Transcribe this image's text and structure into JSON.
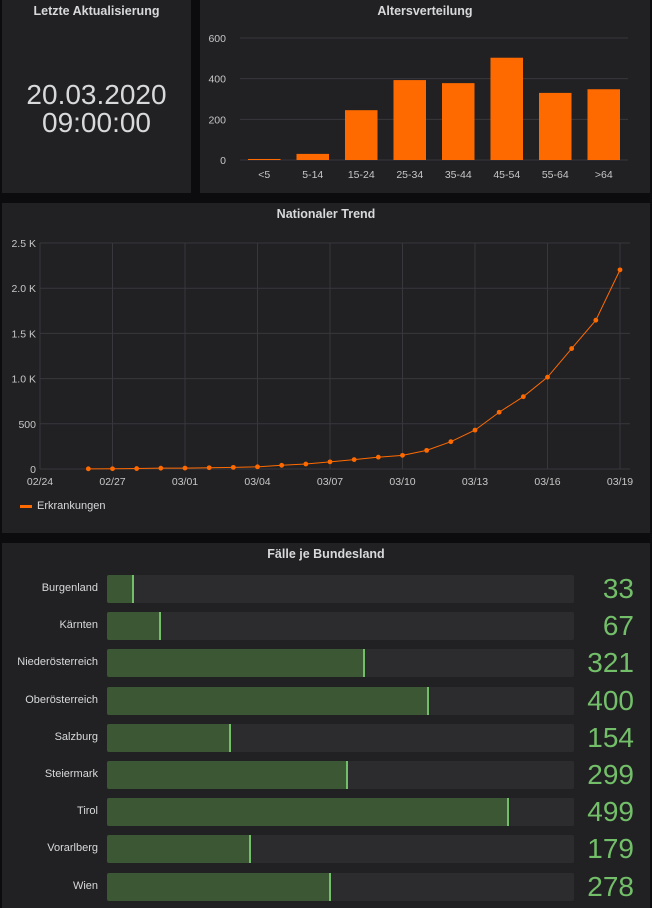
{
  "last_update": {
    "title": "Letzte Aktualisierung",
    "date": "20.03.2020",
    "time": "09:00:00"
  },
  "colors": {
    "accent": "#ff6a00",
    "gauge_fill": "#3b5733",
    "gauge_line": "#73bf69",
    "panel": "#212124",
    "background": "#0c0c0e"
  },
  "chart_data": [
    {
      "id": "age",
      "type": "bar",
      "title": "Altersverteilung",
      "categories": [
        "<5",
        "5-14",
        "15-24",
        "25-34",
        "35-44",
        "45-54",
        "55-64",
        ">64"
      ],
      "values": [
        5,
        30,
        245,
        393,
        378,
        503,
        330,
        348
      ],
      "ylim": [
        0,
        600
      ],
      "yticks": [
        0,
        200,
        400,
        600
      ],
      "grid": true
    },
    {
      "id": "trend",
      "type": "line",
      "title": "Nationaler Trend",
      "x": [
        "02/26",
        "02/27",
        "02/28",
        "02/29",
        "03/01",
        "03/02",
        "03/03",
        "03/04",
        "03/05",
        "03/06",
        "03/07",
        "03/08",
        "03/09",
        "03/10",
        "03/11",
        "03/12",
        "03/13",
        "03/14",
        "03/15",
        "03/16",
        "03/17",
        "03/18",
        "03/19"
      ],
      "series": [
        {
          "name": "Erkrankungen",
          "values": [
            2,
            3,
            5,
            9,
            10,
            14,
            18,
            24,
            41,
            55,
            79,
            104,
            131,
            151,
            206,
            302,
            430,
            628,
            800,
            1016,
            1332,
            1646,
            2203
          ]
        }
      ],
      "xticks": [
        "02/24",
        "02/27",
        "03/01",
        "03/04",
        "03/07",
        "03/10",
        "03/13",
        "03/16",
        "03/19"
      ],
      "yticks": [
        "0",
        "500",
        "1.0 K",
        "1.5 K",
        "2.0 K",
        "2.5 K"
      ],
      "ylim": [
        0,
        2500
      ],
      "grid": true,
      "legend": "bottom-left"
    },
    {
      "id": "states",
      "type": "bar",
      "title": "Fälle je Bundesland",
      "categories": [
        "Burgenland",
        "Kärnten",
        "Niederösterreich",
        "Oberösterreich",
        "Salzburg",
        "Steiermark",
        "Tirol",
        "Vorarlberg",
        "Wien"
      ],
      "values": [
        33,
        67,
        321,
        400,
        154,
        299,
        499,
        179,
        278
      ],
      "max": 580
    }
  ]
}
